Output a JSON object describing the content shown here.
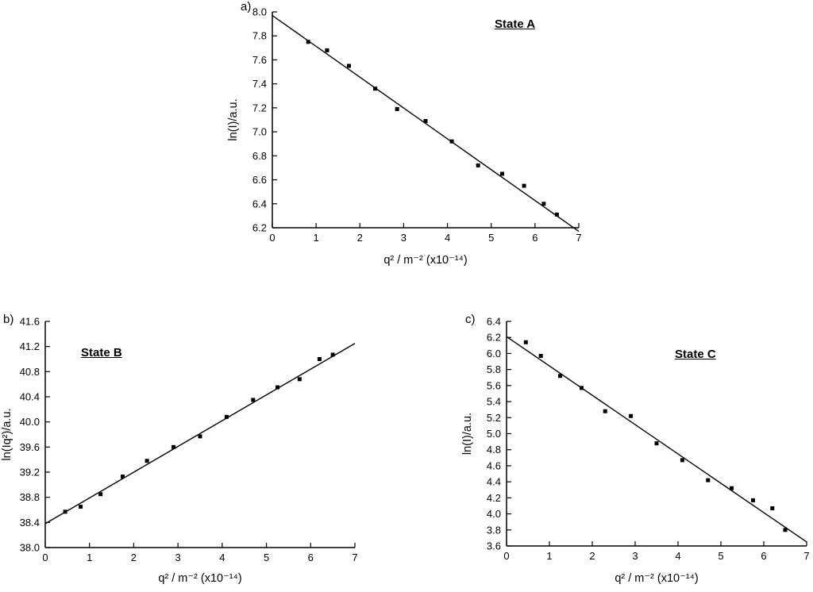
{
  "figure": {
    "background": "#ffffff",
    "axis_color": "#000000",
    "marker_color": "#000000",
    "line_color": "#000000"
  },
  "chart_data": [
    {
      "id": "chart-a",
      "type": "scatter",
      "panel_label": "a)",
      "title": "State A",
      "xlabel": "q² / m⁻² (x10⁻¹⁴)",
      "ylabel": "ln(I)/a.u.",
      "xlim": [
        0,
        7
      ],
      "xstep": 1,
      "x_decimals": 0,
      "ylim": [
        6.2,
        8.0
      ],
      "ystep": 0.2,
      "y_decimals": 1,
      "grid": false,
      "legend": "none",
      "marker": "square",
      "points": [
        [
          0.82,
          7.75
        ],
        [
          1.25,
          7.68
        ],
        [
          1.75,
          7.55
        ],
        [
          2.35,
          7.36
        ],
        [
          2.85,
          7.19
        ],
        [
          3.5,
          7.09
        ],
        [
          4.1,
          6.92
        ],
        [
          4.7,
          6.72
        ],
        [
          5.25,
          6.65
        ],
        [
          5.75,
          6.55
        ],
        [
          6.2,
          6.4
        ],
        [
          6.5,
          6.31
        ]
      ],
      "fit_line": {
        "x": [
          0,
          7
        ],
        "y": [
          7.97,
          6.17
        ]
      }
    },
    {
      "id": "chart-b",
      "type": "scatter",
      "panel_label": "b)",
      "title": "State B",
      "xlabel": "q² / m⁻² (x10⁻¹⁴)",
      "ylabel": "ln(Iq²)/a.u.",
      "xlim": [
        0,
        7
      ],
      "xstep": 1,
      "x_decimals": 0,
      "ylim": [
        38.0,
        41.6
      ],
      "ystep": 0.4,
      "y_decimals": 1,
      "grid": false,
      "legend": "none",
      "marker": "square",
      "points": [
        [
          0.45,
          38.57
        ],
        [
          0.8,
          38.65
        ],
        [
          1.25,
          38.85
        ],
        [
          1.75,
          39.13
        ],
        [
          2.3,
          39.38
        ],
        [
          2.9,
          39.6
        ],
        [
          3.5,
          39.77
        ],
        [
          4.1,
          40.08
        ],
        [
          4.7,
          40.35
        ],
        [
          5.25,
          40.55
        ],
        [
          5.75,
          40.68
        ],
        [
          6.2,
          41.0
        ],
        [
          6.5,
          41.07
        ]
      ],
      "fit_line": {
        "x": [
          0,
          7
        ],
        "y": [
          38.38,
          41.25
        ]
      }
    },
    {
      "id": "chart-c",
      "type": "scatter",
      "panel_label": "c)",
      "title": "State C",
      "xlabel": "q² / m⁻² (x10⁻¹⁴)",
      "ylabel": "ln(I)/a.u.",
      "xlim": [
        0,
        7
      ],
      "xstep": 1,
      "x_decimals": 0,
      "ylim": [
        3.6,
        6.4
      ],
      "ystep": 0.2,
      "y_decimals": 1,
      "grid": false,
      "legend": "none",
      "marker": "square",
      "points": [
        [
          0.45,
          6.14
        ],
        [
          0.8,
          5.97
        ],
        [
          1.25,
          5.72
        ],
        [
          1.75,
          5.57
        ],
        [
          2.3,
          5.28
        ],
        [
          2.9,
          5.22
        ],
        [
          3.5,
          4.88
        ],
        [
          4.1,
          4.67
        ],
        [
          4.7,
          4.42
        ],
        [
          5.25,
          4.32
        ],
        [
          5.75,
          4.17
        ],
        [
          6.2,
          4.07
        ],
        [
          6.5,
          3.8
        ]
      ],
      "fit_line": {
        "x": [
          0,
          7
        ],
        "y": [
          6.21,
          3.65
        ]
      }
    }
  ]
}
